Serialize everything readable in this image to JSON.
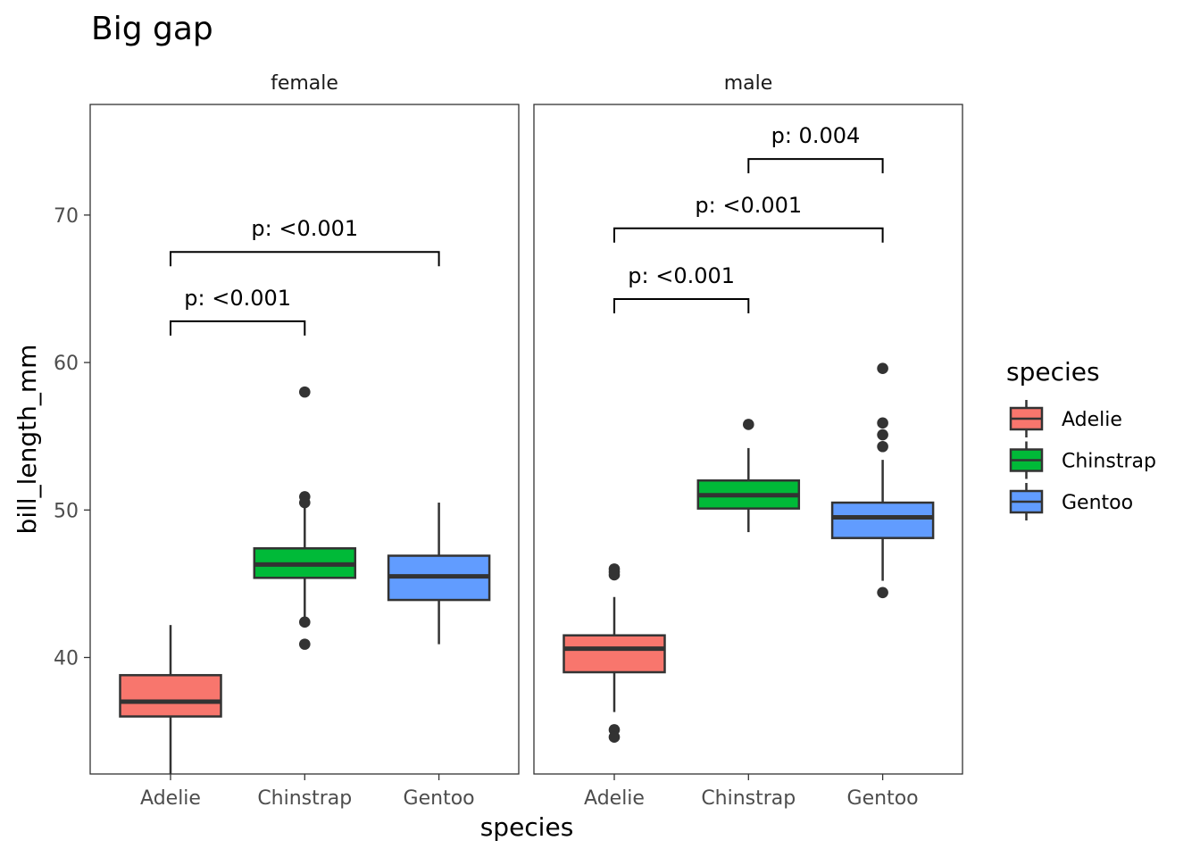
{
  "chart_data": {
    "type": "box",
    "title": "Big gap",
    "xlabel": "species",
    "ylabel": "bill_length_mm",
    "ylim": [
      32.1,
      77.5
    ],
    "yticks": [
      40,
      50,
      60,
      70
    ],
    "categories": [
      "Adelie",
      "Chinstrap",
      "Gentoo"
    ],
    "legend": {
      "title": "species",
      "placement": "right",
      "items": [
        {
          "label": "Adelie",
          "color": "#F8766D"
        },
        {
          "label": "Chinstrap",
          "color": "#00BA38"
        },
        {
          "label": "Gentoo",
          "color": "#619CFF"
        }
      ]
    },
    "grid": false,
    "panels": [
      {
        "facet": "female",
        "boxes": [
          {
            "species": "Adelie",
            "low": 32.1,
            "q1": 36.0,
            "median": 37.0,
            "q3": 38.8,
            "high": 42.2,
            "outliers": []
          },
          {
            "species": "Chinstrap",
            "low": 42.4,
            "q1": 45.4,
            "median": 46.3,
            "q3": 47.4,
            "high": 50.5,
            "outliers": [
              58.0,
              50.9,
              50.5,
              42.4,
              40.9
            ]
          },
          {
            "species": "Gentoo",
            "low": 40.9,
            "q1": 43.9,
            "median": 45.5,
            "q3": 46.9,
            "high": 50.5,
            "outliers": []
          }
        ],
        "brackets": [
          {
            "from": "Adelie",
            "to": "Chinstrap",
            "y": 62.8,
            "label": "p: <0.001"
          },
          {
            "from": "Adelie",
            "to": "Gentoo",
            "y": 67.5,
            "label": "p: <0.001"
          }
        ]
      },
      {
        "facet": "male",
        "boxes": [
          {
            "species": "Adelie",
            "low": 36.3,
            "q1": 39.0,
            "median": 40.6,
            "q3": 41.5,
            "high": 44.1,
            "outliers": [
              46.0,
              45.8,
              45.6,
              35.1,
              34.6
            ]
          },
          {
            "species": "Chinstrap",
            "low": 48.5,
            "q1": 50.1,
            "median": 51.0,
            "q3": 52.0,
            "high": 54.2,
            "outliers": [
              55.8
            ]
          },
          {
            "species": "Gentoo",
            "low": 45.2,
            "q1": 48.1,
            "median": 49.5,
            "q3": 50.5,
            "high": 53.4,
            "outliers": [
              59.6,
              55.9,
              55.1,
              54.3,
              44.4
            ]
          }
        ],
        "brackets": [
          {
            "from": "Adelie",
            "to": "Chinstrap",
            "y": 64.3,
            "label": "p: <0.001"
          },
          {
            "from": "Adelie",
            "to": "Gentoo",
            "y": 69.1,
            "label": "p: <0.001"
          },
          {
            "from": "Chinstrap",
            "to": "Gentoo",
            "y": 73.8,
            "label": "p: 0.004"
          }
        ]
      }
    ]
  }
}
